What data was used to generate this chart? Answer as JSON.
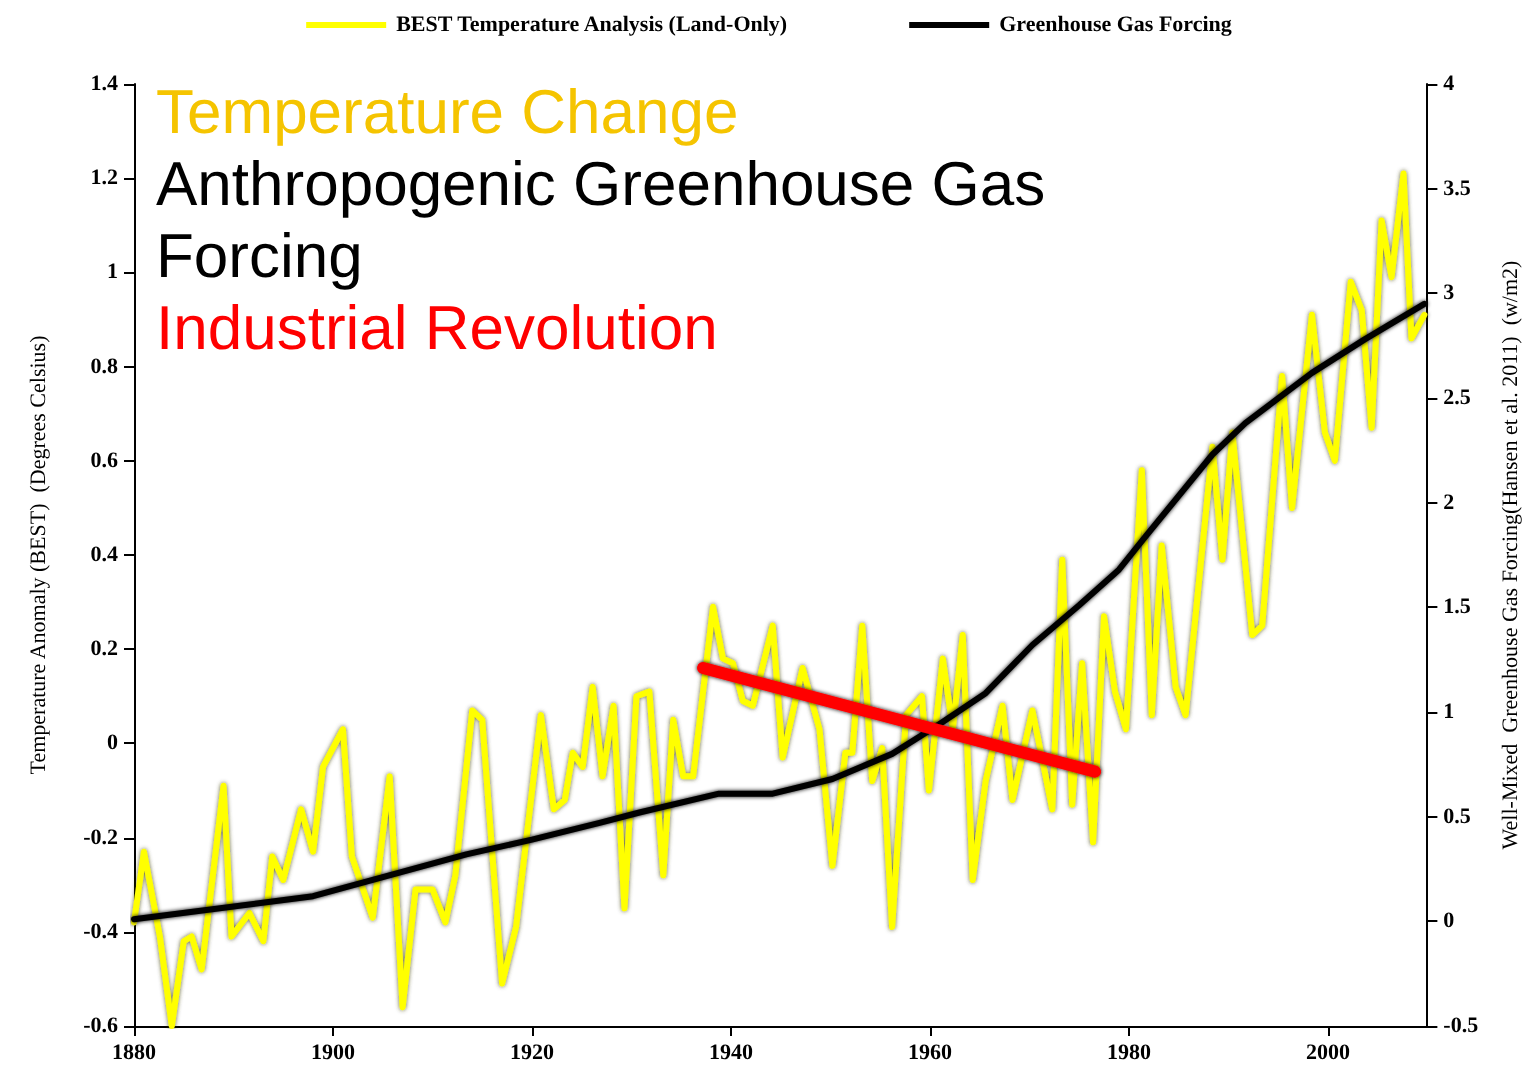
{
  "chart_data": {
    "type": "line",
    "xlabel": null,
    "ylabel": "Temperature Anomaly (BEST)  (Degrees Celsius)",
    "y2label": "Well-Mixed  Greenhouse Gas Forcing(Hansen et al. 2011)  (w/m2)",
    "annotations": [
      "Temperature Change",
      "Anthropogenic Greenhouse Gas Forcing",
      "Industrial Revolution"
    ],
    "xlim": [
      1880,
      2010
    ],
    "xticks": [
      1880,
      1900,
      1920,
      1940,
      1960,
      1980,
      2000
    ],
    "ylim": [
      -0.6,
      1.4
    ],
    "yticks": [
      -0.6,
      -0.4,
      -0.2,
      0,
      0.2,
      0.4,
      0.6,
      0.8,
      1,
      1.2,
      1.4
    ],
    "y2lim": [
      -0.5,
      4
    ],
    "y2ticks": [
      -0.5,
      0,
      0.5,
      1,
      1.5,
      2,
      2.5,
      3,
      3.5,
      4
    ],
    "grid": false,
    "legend": "top",
    "marker": "none",
    "line_style": "solid",
    "series": [
      {
        "name": "BEST Temperature Analysis (Land-Only)",
        "color": "#ffff00",
        "x": [
          1880,
          1881,
          1882.6,
          1883.8,
          1885,
          1885.8,
          1886.8,
          1889,
          1889.8,
          1891.6,
          1893,
          1893.9,
          1895,
          1896.8,
          1898,
          1899,
          1901,
          1901.9,
          1904,
          1905.7,
          1907,
          1908.3,
          1910,
          1911.3,
          1912.3,
          1914,
          1915,
          1917,
          1918.4,
          1920.9,
          1922.2,
          1923.3,
          1924.1,
          1925.1,
          1926.1,
          1927.1,
          1928.2,
          1929.3,
          1930.5,
          1931.8,
          1933.2,
          1934.2,
          1935.2,
          1936.2,
          1938.2,
          1939.2,
          1940.2,
          1941.2,
          1942.2,
          1944.2,
          1945.2,
          1947.2,
          1948.9,
          1950.2,
          1951.5,
          1952.2,
          1953.2,
          1954.2,
          1955.2,
          1956.2,
          1957.6,
          1959.2,
          1959.9,
          1961.3,
          1962.3,
          1963.3,
          1964.3,
          1965.6,
          1967.3,
          1968.3,
          1970.3,
          1972.3,
          1973.3,
          1974.3,
          1975.3,
          1976.4,
          1977.5,
          1978.6,
          1979.7,
          1981.3,
          1982.3,
          1983.3,
          1984.7,
          1985.7,
          1988.4,
          1989.4,
          1990.4,
          1992.4,
          1993.4,
          1995.4,
          1996.4,
          1998.4,
          1999.7,
          2000.7,
          2002.3,
          2003.4,
          2004.4,
          2005.4,
          2006.4,
          2007.6,
          2008.4,
          2009.7
        ],
        "values": [
          -0.38,
          -0.23,
          -0.41,
          -0.6,
          -0.42,
          -0.41,
          -0.48,
          -0.09,
          -0.41,
          -0.36,
          -0.42,
          -0.24,
          -0.29,
          -0.14,
          -0.23,
          -0.05,
          0.03,
          -0.24,
          -0.37,
          -0.07,
          -0.56,
          -0.31,
          -0.31,
          -0.38,
          -0.28,
          0.07,
          0.05,
          -0.51,
          -0.39,
          0.06,
          -0.14,
          -0.12,
          -0.02,
          -0.05,
          0.12,
          -0.07,
          0.08,
          -0.35,
          0.1,
          0.11,
          -0.28,
          0.05,
          -0.07,
          -0.07,
          0.29,
          0.18,
          0.17,
          0.09,
          0.08,
          0.25,
          -0.03,
          0.16,
          0.03,
          -0.26,
          -0.02,
          -0.02,
          0.25,
          -0.08,
          -0.01,
          -0.39,
          0.06,
          0.1,
          -0.1,
          0.18,
          0.03,
          0.23,
          -0.29,
          -0.08,
          0.08,
          -0.12,
          0.07,
          -0.14,
          0.39,
          -0.13,
          0.17,
          -0.21,
          0.27,
          0.11,
          0.03,
          0.58,
          0.06,
          0.42,
          0.12,
          0.06,
          0.63,
          0.39,
          0.66,
          0.23,
          0.25,
          0.78,
          0.5,
          0.91,
          0.66,
          0.6,
          0.98,
          0.92,
          0.67,
          1.11,
          0.99,
          1.21,
          0.86,
          0.91
        ]
      },
      {
        "name": "Greenhouse Gas Forcing",
        "color": "#000000",
        "axis": "y2",
        "x": [
          1880,
          1898,
          1913.4,
          1920,
          1926.8,
          1930.8,
          1938.8,
          1944.2,
          1950.2,
          1956.2,
          1960.9,
          1965.6,
          1970.3,
          1975,
          1979,
          1981.7,
          1988.4,
          1991.7,
          1998.4,
          2003.7,
          2009.7
        ],
        "values": [
          0.01,
          0.12,
          0.32,
          0.39,
          0.47,
          0.52,
          0.61,
          0.61,
          0.68,
          0.8,
          0.94,
          1.09,
          1.32,
          1.51,
          1.68,
          1.84,
          2.23,
          2.38,
          2.62,
          2.78,
          2.95
        ]
      },
      {
        "color": "#ff0000",
        "x": [
          1937.2,
          1976.6
        ],
        "values": [
          0.16,
          -0.06
        ]
      }
    ]
  }
}
